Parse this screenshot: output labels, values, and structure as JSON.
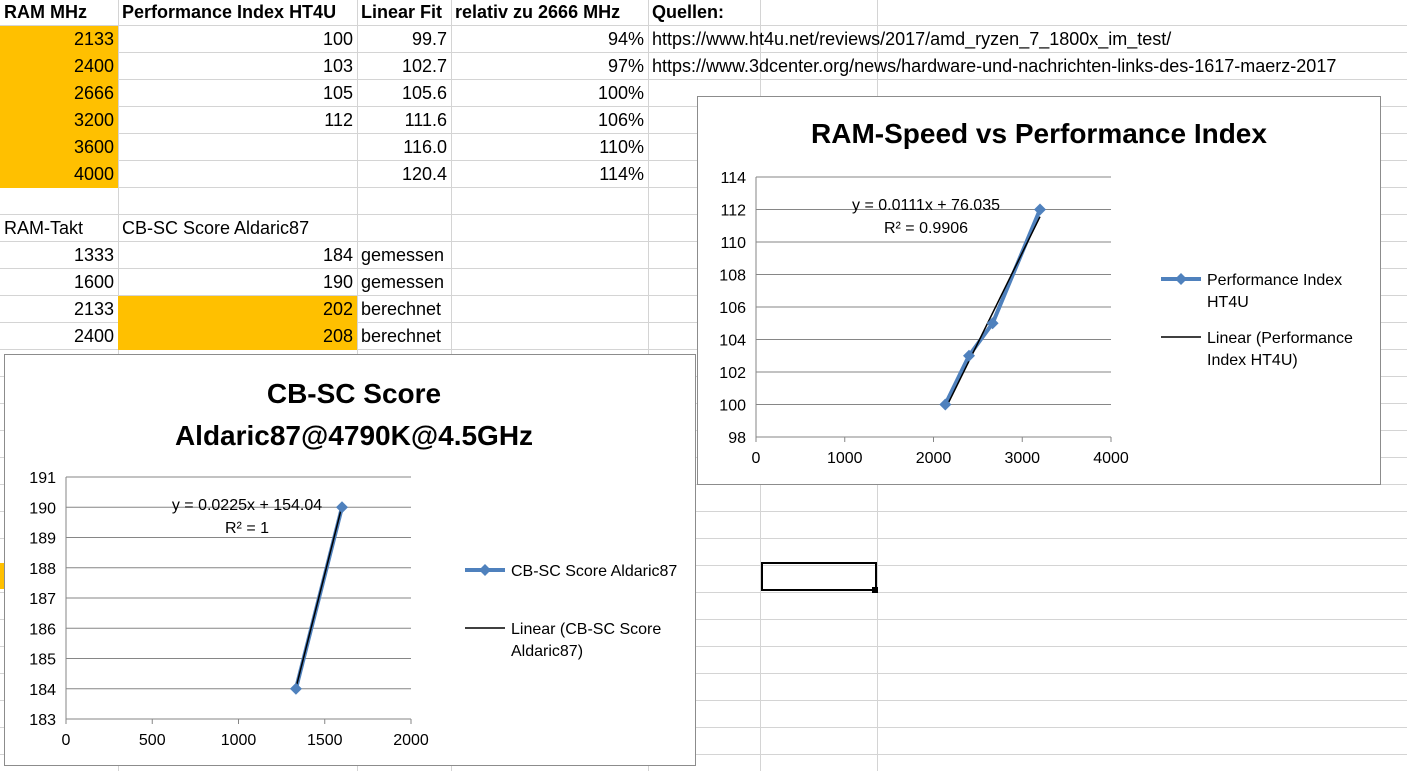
{
  "table1": {
    "headers": [
      "RAM MHz",
      "Performance Index HT4U",
      "Linear Fit",
      "relativ zu 2666 MHz",
      "Quellen:"
    ],
    "rows": [
      [
        "2133",
        "100",
        "99.7",
        "94%",
        "https://www.ht4u.net/reviews/2017/amd_ryzen_7_1800x_im_test/"
      ],
      [
        "2400",
        "103",
        "102.7",
        "97%",
        "https://www.3dcenter.org/news/hardware-und-nachrichten-links-des-1617-maerz-2017"
      ],
      [
        "2666",
        "105",
        "105.6",
        "100%",
        ""
      ],
      [
        "3200",
        "112",
        "111.6",
        "106%",
        ""
      ],
      [
        "3600",
        "",
        "116.0",
        "110%",
        ""
      ],
      [
        "4000",
        "",
        "120.4",
        "114%",
        ""
      ]
    ]
  },
  "table2": {
    "headers": [
      "RAM-Takt",
      "CB-SC Score Aldaric87"
    ],
    "rows": [
      [
        "1333",
        "184",
        "gemessen"
      ],
      [
        "1600",
        "190",
        "gemessen"
      ],
      [
        "2133",
        "202",
        "berechnet"
      ],
      [
        "2400",
        "208",
        "berechnet"
      ]
    ]
  },
  "colors": {
    "highlight": "#ffc000",
    "series": "#4f81bd",
    "trend": "#000000",
    "grid": "#d4d4d4"
  },
  "chart_data": [
    {
      "type": "scatter",
      "title": "RAM-Speed vs Performance Index",
      "series": [
        {
          "name": "Performance Index HT4U",
          "x": [
            2133,
            2400,
            2666,
            3200
          ],
          "y": [
            100,
            103,
            105,
            112
          ]
        }
      ],
      "trendline": {
        "name": "Linear (Performance Index HT4U)",
        "slope": 0.0111,
        "intercept": 76.035,
        "equation": "y = 0.0111x + 76.035",
        "r2": "R² = 0.9906"
      },
      "xlim": [
        0,
        4000
      ],
      "ylim": [
        98,
        114
      ],
      "xticks": [
        "0",
        "1000",
        "2000",
        "3000",
        "4000"
      ],
      "yticks": [
        "98",
        "100",
        "102",
        "104",
        "106",
        "108",
        "110",
        "112",
        "114"
      ],
      "legend": "right",
      "grid": true
    },
    {
      "type": "scatter",
      "title": [
        "CB-SC Score",
        "Aldaric87@4790K@4.5GHz"
      ],
      "series": [
        {
          "name": "CB-SC Score Aldaric87",
          "x": [
            1333,
            1600
          ],
          "y": [
            184,
            190
          ]
        }
      ],
      "trendline": {
        "name": "Linear (CB-SC Score Aldaric87)",
        "slope": 0.0225,
        "intercept": 154.04,
        "equation": "y = 0.0225x + 154.04",
        "r2": "R² = 1"
      },
      "xlim": [
        0,
        2000
      ],
      "ylim": [
        183,
        191
      ],
      "xticks": [
        "0",
        "500",
        "1000",
        "1500",
        "2000"
      ],
      "yticks": [
        "183",
        "184",
        "185",
        "186",
        "187",
        "188",
        "189",
        "190",
        "191"
      ],
      "legend": "right",
      "grid": true
    }
  ]
}
